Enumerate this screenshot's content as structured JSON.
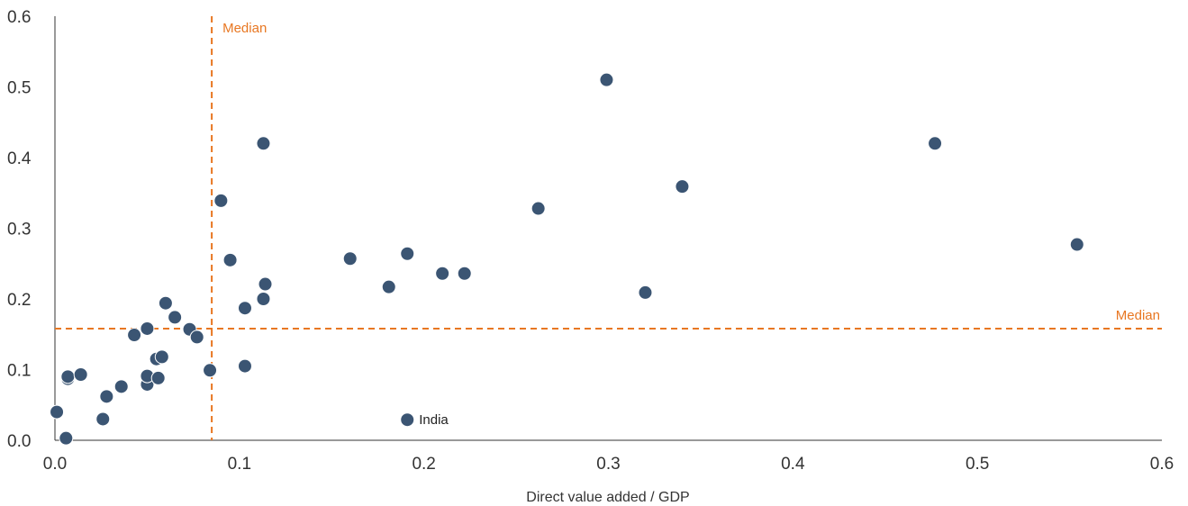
{
  "chart_data": {
    "type": "scatter",
    "title": "",
    "xlabel": "Direct value added / GDP",
    "ylabel": "",
    "xlim": [
      0,
      0.6
    ],
    "ylim": [
      0,
      0.6
    ],
    "x_ticks": [
      "0.0",
      "0.1",
      "0.2",
      "0.3",
      "0.4",
      "0.5",
      "0.6"
    ],
    "y_ticks": [
      "0.0",
      "0.1",
      "0.2",
      "0.3",
      "0.4",
      "0.5",
      "0.6"
    ],
    "grid": false,
    "colors": {
      "points": "#3b5573",
      "median": "#e87722",
      "axis": "#333333"
    },
    "medians": {
      "x": 0.085,
      "y": 0.158,
      "x_label": "Median",
      "y_label": "Median"
    },
    "series": [
      {
        "points": [
          [
            0.001,
            0.04
          ],
          [
            0.006,
            0.003
          ],
          [
            0.007,
            0.087
          ],
          [
            0.007,
            0.09
          ],
          [
            0.014,
            0.093
          ],
          [
            0.026,
            0.03
          ],
          [
            0.028,
            0.062
          ],
          [
            0.036,
            0.076
          ],
          [
            0.043,
            0.149
          ],
          [
            0.05,
            0.158
          ],
          [
            0.05,
            0.079
          ],
          [
            0.05,
            0.091
          ],
          [
            0.055,
            0.115
          ],
          [
            0.056,
            0.088
          ],
          [
            0.058,
            0.118
          ],
          [
            0.06,
            0.194
          ],
          [
            0.065,
            0.174
          ],
          [
            0.073,
            0.157
          ],
          [
            0.077,
            0.146
          ],
          [
            0.084,
            0.099
          ],
          [
            0.09,
            0.339
          ],
          [
            0.095,
            0.255
          ],
          [
            0.103,
            0.187
          ],
          [
            0.103,
            0.105
          ],
          [
            0.113,
            0.42
          ],
          [
            0.113,
            0.2
          ],
          [
            0.114,
            0.221
          ],
          [
            0.16,
            0.257
          ],
          [
            0.181,
            0.217
          ],
          [
            0.191,
            0.264
          ],
          [
            0.21,
            0.236
          ],
          [
            0.222,
            0.236
          ],
          [
            0.262,
            0.328
          ],
          [
            0.299,
            0.51
          ],
          [
            0.32,
            0.209
          ],
          [
            0.34,
            0.359
          ],
          [
            0.477,
            0.42
          ],
          [
            0.554,
            0.277
          ]
        ]
      },
      {
        "label": "India",
        "points": [
          [
            0.191,
            0.029
          ]
        ]
      }
    ]
  }
}
